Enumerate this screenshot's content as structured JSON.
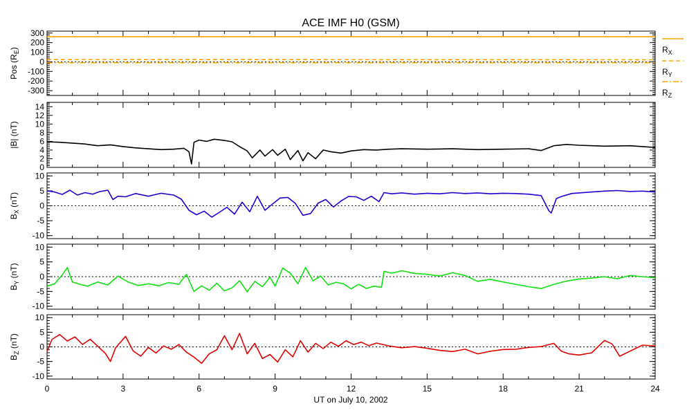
{
  "chart_data": {
    "title": "ACE IMF H0 (GSM)",
    "xlabel": "UT on July 10, 2002",
    "x_ticks": [
      "0",
      "3",
      "6",
      "9",
      "12",
      "15",
      "18",
      "21",
      "24"
    ],
    "x_range": [
      0,
      24
    ],
    "panels": [
      {
        "id": "pos",
        "type": "line",
        "ylabel_main": "Pos (R",
        "ylabel_sub": "E",
        "ylabel_end": ")",
        "ylim": [
          -350,
          320
        ],
        "ytick_values": [
          300,
          200,
          100,
          0,
          -100,
          -200,
          -300
        ],
        "ytick_labels": [
          "300",
          "200",
          "100",
          "0",
          "-100",
          "-200",
          "-300"
        ],
        "zero_line": true,
        "series": [
          {
            "name": "R",
            "sub": "X",
            "color": "#ffa500",
            "style": "solid",
            "x": [
              0,
              24
            ],
            "y": [
              262,
              262
            ]
          },
          {
            "name": "R",
            "sub": "Y",
            "color": "#ffa500",
            "style": "dash",
            "x": [
              0,
              24
            ],
            "y": [
              24,
              22
            ]
          },
          {
            "name": "R",
            "sub": "Z",
            "color": "#ffa500",
            "style": "dashdot",
            "x": [
              0,
              24
            ],
            "y": [
              -9,
              -9
            ]
          }
        ]
      },
      {
        "id": "btot",
        "type": "line",
        "ylabel_main": "|B| (nT)",
        "ylabel_sub": "",
        "ylabel_end": "",
        "ylim": [
          0,
          15
        ],
        "ytick_values": [
          14,
          12,
          10,
          8,
          6,
          4,
          2,
          0
        ],
        "ytick_labels": [
          "14",
          "12",
          "10",
          "8",
          "6",
          "4",
          "2",
          "0"
        ],
        "zero_line": false,
        "series": [
          {
            "name": "|B|",
            "color": "#000000",
            "style": "solid",
            "x": [
              0,
              0.5,
              1,
              1.5,
              2,
              2.5,
              3,
              3.5,
              4,
              4.5,
              5,
              5.4,
              5.6,
              5.7,
              5.8,
              6,
              6.3,
              6.6,
              7,
              7.3,
              7.6,
              7.9,
              8.1,
              8.4,
              8.6,
              8.9,
              9.1,
              9.4,
              9.6,
              9.9,
              10.1,
              10.3,
              10.6,
              10.9,
              11.2,
              11.6,
              12,
              12.5,
              13,
              13.5,
              14,
              15,
              16,
              17,
              18,
              19,
              19.5,
              20,
              20.5,
              21,
              22,
              23,
              24
            ],
            "y": [
              5.9,
              5.8,
              5.6,
              5.4,
              5.0,
              5.2,
              4.8,
              4.5,
              4.3,
              4.1,
              4.2,
              4.4,
              3.6,
              0.8,
              5.8,
              6.3,
              6.0,
              6.5,
              6.2,
              5.9,
              4.8,
              3.8,
              2.2,
              4.0,
              2.6,
              4.1,
              2.8,
              4.2,
              1.8,
              3.9,
              1.5,
              3.4,
              2.0,
              4.0,
              3.6,
              3.3,
              3.8,
              4.1,
              4.0,
              4.2,
              4.3,
              4.2,
              4.3,
              4.1,
              4.2,
              4.3,
              3.9,
              5.0,
              5.3,
              5.1,
              4.9,
              5.0,
              4.6
            ]
          }
        ]
      },
      {
        "id": "bx",
        "type": "line",
        "ylabel_main": "B",
        "ylabel_sub": "X",
        "ylabel_end": " (nT)",
        "ylim": [
          -11,
          11
        ],
        "ytick_values": [
          10,
          5,
          0,
          -5,
          -10
        ],
        "ytick_labels": [
          "10",
          "5",
          "0",
          "-5",
          "-10"
        ],
        "zero_line": true,
        "series": [
          {
            "name": "B_X",
            "color": "#1f00d0",
            "style": "solid",
            "x": [
              0,
              0.3,
              0.6,
              0.9,
              1.2,
              1.5,
              1.8,
              2.1,
              2.4,
              2.6,
              2.8,
              3.1,
              3.5,
              4.0,
              4.5,
              5.0,
              5.3,
              5.6,
              5.9,
              6.2,
              6.5,
              6.8,
              7.1,
              7.4,
              7.7,
              8.0,
              8.3,
              8.6,
              8.9,
              9.2,
              9.5,
              9.8,
              10.1,
              10.4,
              10.7,
              11.0,
              11.3,
              11.6,
              11.9,
              12.2,
              12.5,
              12.8,
              13.1,
              13.3,
              13.6,
              14,
              14.5,
              15,
              15.5,
              16,
              16.5,
              17,
              17.5,
              18,
              18.5,
              19,
              19.5,
              19.8,
              19.9,
              20.1,
              20.3,
              20.7,
              21,
              21.5,
              22,
              22.5,
              23,
              23.5,
              24
            ],
            "y": [
              5.0,
              4.6,
              3.8,
              5.2,
              3.6,
              4.4,
              3.9,
              4.8,
              5.2,
              2.1,
              3.2,
              3.0,
              4.1,
              3.2,
              4.2,
              3.6,
              2.2,
              -1.5,
              -3.0,
              -1.8,
              -3.8,
              -2.2,
              -0.5,
              -2.8,
              1.2,
              -2.0,
              3.2,
              -1.5,
              0.6,
              2.6,
              2.8,
              0.8,
              -3.2,
              -2.6,
              0.9,
              2.1,
              -0.4,
              1.6,
              3.1,
              3.0,
              1.8,
              3.2,
              1.4,
              4.4,
              4.0,
              4.3,
              3.9,
              4.2,
              4.0,
              4.4,
              4.1,
              4.3,
              4.0,
              4.2,
              4.1,
              3.9,
              3.4,
              -1.6,
              -2.4,
              2.4,
              3.1,
              4.1,
              4.3,
              4.6,
              4.9,
              5.1,
              4.8,
              4.9,
              4.6
            ]
          }
        ]
      },
      {
        "id": "by",
        "type": "line",
        "ylabel_main": "B",
        "ylabel_sub": "Y",
        "ylabel_end": " (nT)",
        "ylim": [
          -11,
          11
        ],
        "ytick_values": [
          10,
          5,
          0,
          -5,
          -10
        ],
        "ytick_labels": [
          "10",
          "5",
          "0",
          "-5",
          "-10"
        ],
        "zero_line": true,
        "series": [
          {
            "name": "B_Y",
            "color": "#10e010",
            "style": "solid",
            "x": [
              0,
              0.3,
              0.6,
              0.8,
              1.0,
              1.3,
              1.6,
              2.0,
              2.4,
              2.8,
              3.2,
              3.6,
              4.0,
              4.4,
              4.8,
              5.2,
              5.5,
              5.8,
              6.1,
              6.4,
              6.7,
              7.0,
              7.3,
              7.6,
              7.9,
              8.2,
              8.5,
              8.8,
              9.0,
              9.3,
              9.6,
              9.9,
              10.2,
              10.5,
              10.8,
              11.1,
              11.4,
              11.7,
              12,
              12.3,
              12.6,
              12.9,
              13.2,
              13.3,
              13.6,
              14,
              14.5,
              15,
              15.5,
              16,
              16.5,
              17,
              17.5,
              18,
              18.5,
              19,
              19.5,
              20,
              20.5,
              21,
              21.5,
              22,
              22.5,
              23,
              23.5,
              24
            ],
            "y": [
              -3.2,
              -2.4,
              0.6,
              3.1,
              -1.8,
              -2.6,
              -3.2,
              -1.8,
              -2.8,
              0.2,
              -1.8,
              -3.0,
              -2.4,
              -3.1,
              -2.0,
              -2.6,
              0.8,
              -5.0,
              -3.1,
              -4.6,
              -2.2,
              -4.8,
              -3.8,
              -1.4,
              -5.1,
              -1.6,
              -3.4,
              -0.2,
              -3.2,
              2.9,
              1.2,
              -2.4,
              3.1,
              -1.4,
              0.2,
              -2.8,
              -1.9,
              -2.4,
              -4.1,
              -2.6,
              -4.0,
              -3.2,
              -3.6,
              1.8,
              1.2,
              2.0,
              1.1,
              0.8,
              0.2,
              1.3,
              0.4,
              -1.6,
              -0.9,
              -1.8,
              -2.6,
              -3.4,
              -4.0,
              -2.6,
              -1.5,
              -0.8,
              -0.5,
              0.0,
              -0.7,
              0.4,
              0.0,
              -0.4
            ]
          }
        ]
      },
      {
        "id": "bz",
        "type": "line",
        "ylabel_main": "B",
        "ylabel_sub": "Z",
        "ylabel_end": " (nT)",
        "ylim": [
          -11,
          11
        ],
        "ytick_values": [
          10,
          5,
          0,
          -5,
          -10
        ],
        "ytick_labels": [
          "10",
          "5",
          "0",
          "-5",
          "-10"
        ],
        "zero_line": true,
        "series": [
          {
            "name": "B_Z",
            "color": "#e00000",
            "style": "solid",
            "x": [
              0,
              0.2,
              0.5,
              0.8,
              1.1,
              1.4,
              1.7,
              2.0,
              2.3,
              2.5,
              2.7,
              2.9,
              3.1,
              3.4,
              3.7,
              4.0,
              4.3,
              4.6,
              4.9,
              5.2,
              5.5,
              5.8,
              6.1,
              6.4,
              6.7,
              7.0,
              7.3,
              7.6,
              7.9,
              8.2,
              8.5,
              8.8,
              9.1,
              9.4,
              9.7,
              10.0,
              10.3,
              10.6,
              10.9,
              11.2,
              11.5,
              11.8,
              12.1,
              12.4,
              12.7,
              13,
              13.5,
              14,
              14.5,
              15,
              15.5,
              16,
              16.5,
              17,
              17.5,
              18,
              18.5,
              19,
              19.5,
              20,
              20.3,
              20.6,
              21,
              21.5,
              22,
              22.3,
              22.6,
              23,
              23.5,
              24
            ],
            "y": [
              -1.5,
              2.6,
              4.2,
              2.0,
              3.4,
              0.8,
              2.6,
              0.2,
              -2.2,
              -5.0,
              -0.4,
              1.6,
              3.6,
              -1.4,
              -3.2,
              -0.2,
              -2.1,
              0.3,
              -0.8,
              0.8,
              -1.8,
              -3.5,
              -5.6,
              -2.4,
              -1.0,
              3.8,
              -1.0,
              4.6,
              -2.4,
              1.2,
              -4.0,
              -2.6,
              -5.2,
              -1.0,
              -3.4,
              2.1,
              -1.8,
              1.2,
              -0.6,
              1.6,
              0.2,
              2.1,
              0.8,
              1.6,
              0.4,
              1.3,
              0.3,
              -0.3,
              0.1,
              -0.5,
              -1.2,
              -1.6,
              -0.8,
              -2.4,
              -1.5,
              -0.9,
              -0.8,
              -0.2,
              0.1,
              1.2,
              -1.5,
              -2.4,
              -2.8,
              -2.0,
              2.2,
              1.0,
              -3.2,
              -1.5,
              0.6,
              0.3
            ]
          }
        ]
      }
    ]
  }
}
